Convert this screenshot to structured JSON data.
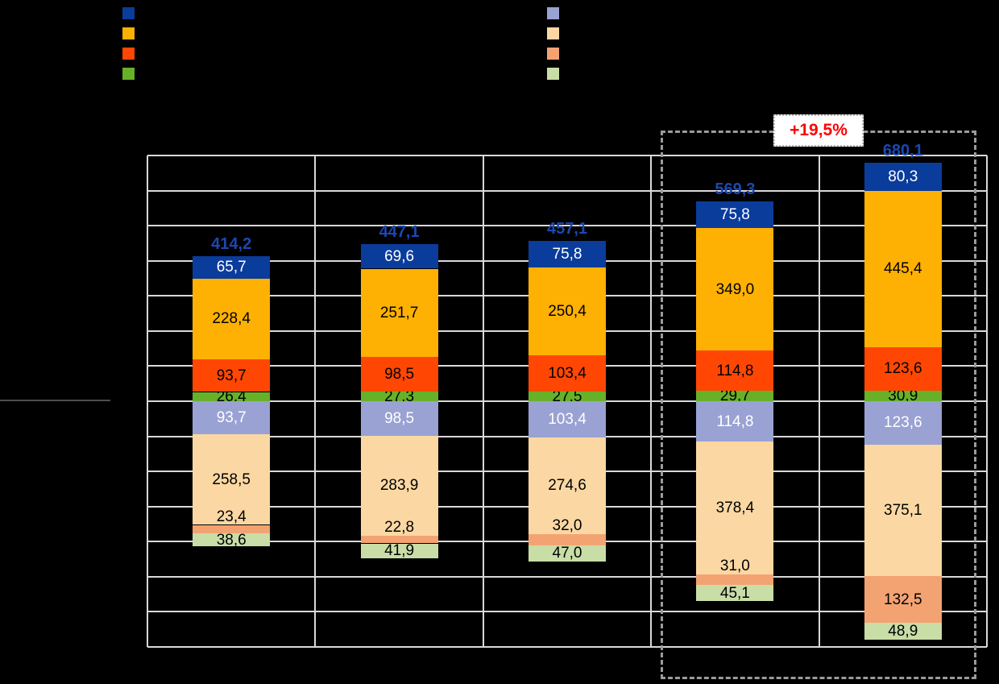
{
  "chart_data": {
    "type": "bar",
    "subtype": "diverging-stacked-bar",
    "title": "",
    "xlabel": "",
    "ylabel": "",
    "categories": [
      "",
      "",
      "",
      "",
      ""
    ],
    "axis": {
      "ylim": [
        -700,
        700
      ],
      "grid_step": 100,
      "grid": true,
      "grid_color": "#d9d9d9",
      "zero_line_y": 0,
      "decimal_separator": ","
    },
    "totals": {
      "values": [
        414.2,
        447.1,
        457.1,
        569.3,
        680.1
      ],
      "labels": [
        "414,2",
        "447,1",
        "457,1",
        "569,3",
        "680,1"
      ],
      "color": "#1b48b2"
    },
    "upper_series": [
      {
        "name": "upper-dark-blue",
        "legend_label": "",
        "color": "#0a3c9c",
        "label_color": "#ffffff",
        "values": [
          65.7,
          69.6,
          75.8,
          75.8,
          80.3
        ],
        "labels": [
          "65,7",
          "69,6",
          "75,8",
          "75,8",
          "80,3"
        ]
      },
      {
        "name": "upper-orange",
        "legend_label": "",
        "color": "#ffb103",
        "label_color": "#000000",
        "values": [
          228.4,
          251.7,
          250.4,
          349.0,
          445.4
        ],
        "labels": [
          "228,4",
          "251,7",
          "250,4",
          "349,0",
          "445,4"
        ]
      },
      {
        "name": "upper-orange-red",
        "legend_label": "",
        "color": "#ff4703",
        "label_color": "#000000",
        "values": [
          93.7,
          98.5,
          103.4,
          114.8,
          123.6
        ],
        "labels": [
          "93,7",
          "98,5",
          "103,4",
          "114,8",
          "123,6"
        ]
      },
      {
        "name": "upper-green",
        "legend_label": "",
        "color": "#67b129",
        "label_color": "#000000",
        "values": [
          26.4,
          27.3,
          27.5,
          29.7,
          30.9
        ],
        "labels": [
          "26,4",
          "27,3",
          "27,5",
          "29,7",
          "30,9"
        ]
      }
    ],
    "lower_series": [
      {
        "name": "lower-light-purple",
        "legend_label": "",
        "color": "#99a2d3",
        "label_color": "#ffffff",
        "values": [
          93.7,
          98.5,
          103.4,
          114.8,
          123.6
        ],
        "labels": [
          "93,7",
          "98,5",
          "103,4",
          "114,8",
          "123,6"
        ]
      },
      {
        "name": "lower-light-peach",
        "legend_label": "",
        "color": "#fbd8a3",
        "label_color": "#000000",
        "values": [
          258.5,
          283.9,
          274.6,
          378.4,
          375.1
        ],
        "labels": [
          "258,5",
          "283,9",
          "274,6",
          "378,4",
          "375,1"
        ]
      },
      {
        "name": "lower-light-salmon",
        "legend_label": "",
        "color": "#f3a372",
        "label_color": "#000000",
        "values": [
          23.4,
          22.8,
          32.0,
          31.0,
          132.5
        ],
        "labels": [
          "23,4",
          "22,8",
          "32,0",
          "31,0",
          "132,5"
        ]
      },
      {
        "name": "lower-light-green",
        "legend_label": "",
        "color": "#c9dda7",
        "label_color": "#000000",
        "values": [
          38.6,
          41.9,
          47.0,
          45.1,
          48.9
        ],
        "labels": [
          "38,6",
          "41,9",
          "47,0",
          "45,1",
          "48,9"
        ]
      }
    ],
    "annotation": {
      "text": "+19,5%",
      "text_color": "#ff0000",
      "box_bg": "#ffffff",
      "highlight_categories": [
        3,
        4
      ],
      "highlight_border": "dashed"
    },
    "legend": {
      "left_column": [
        {
          "name": "swatch-dark-blue",
          "color": "#0a3c9c",
          "label": ""
        },
        {
          "name": "swatch-orange",
          "color": "#ffb103",
          "label": ""
        },
        {
          "name": "swatch-orange-red",
          "color": "#ff4703",
          "label": ""
        },
        {
          "name": "swatch-green",
          "color": "#67b129",
          "label": ""
        }
      ],
      "right_column": [
        {
          "name": "swatch-light-purple",
          "color": "#99a2d3",
          "label": ""
        },
        {
          "name": "swatch-light-peach",
          "color": "#fbd8a3",
          "label": ""
        },
        {
          "name": "swatch-light-salmon",
          "color": "#f3a372",
          "label": ""
        },
        {
          "name": "swatch-light-green",
          "color": "#c9dda7",
          "label": ""
        }
      ]
    }
  }
}
